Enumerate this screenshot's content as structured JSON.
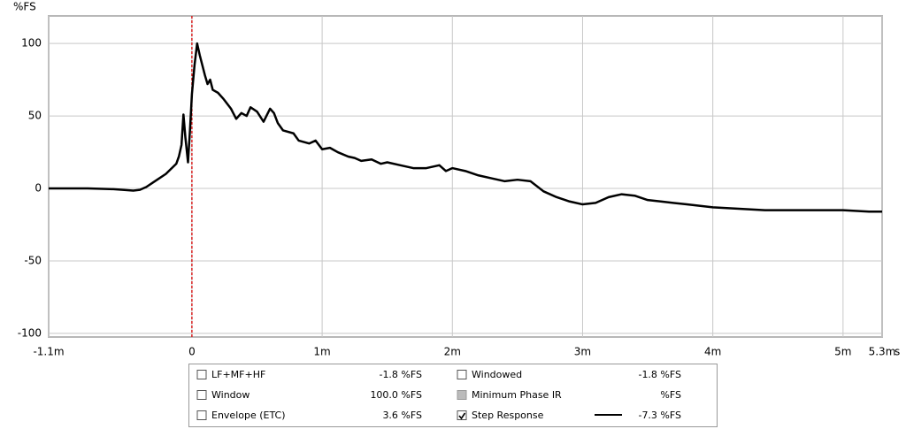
{
  "chart_data": {
    "type": "line",
    "ylabel": "%FS",
    "xlabel": "s",
    "xlim": [
      -0.0011,
      0.0053
    ],
    "ylim": [
      -102.5,
      119
    ],
    "xticks": [
      {
        "value": -0.0011,
        "label": "-1.1m"
      },
      0,
      {
        "value": 0.001,
        "label": "1m"
      },
      {
        "value": 0.002,
        "label": "2m"
      },
      {
        "value": 0.003,
        "label": "3m"
      },
      {
        "value": 0.004,
        "label": "4m"
      },
      {
        "value": 0.005,
        "label": "5m"
      },
      {
        "value": 0.0053,
        "label": "5.3m"
      }
    ],
    "yticks": [
      100,
      50,
      0,
      -50,
      -100
    ],
    "grid": true,
    "cursor_x": 0,
    "cursor_color": "#d40000",
    "x": [
      -0.0011,
      -0.0008,
      -0.0006,
      -0.00045,
      -0.0004,
      -0.00035,
      -0.0003,
      -0.0002,
      -0.00012,
      -0.0001,
      -8e-05,
      -6.5e-05,
      -5e-05,
      -3e-05,
      -1.5e-05,
      0,
      2e-05,
      4e-05,
      6e-05,
      8e-05,
      0.0001,
      0.00012,
      0.00014,
      0.00016,
      0.0002,
      0.00024,
      0.0003,
      0.00034,
      0.00038,
      0.00042,
      0.00045,
      0.0005,
      0.00055,
      0.0006,
      0.00063,
      0.00066,
      0.0007,
      0.00078,
      0.00082,
      0.0009,
      0.00095,
      0.001,
      0.00106,
      0.00112,
      0.0012,
      0.00125,
      0.0013,
      0.00138,
      0.00145,
      0.0015,
      0.0016,
      0.0017,
      0.0018,
      0.0019,
      0.00195,
      0.002,
      0.0021,
      0.0022,
      0.0023,
      0.0024,
      0.0025,
      0.0026,
      0.0027,
      0.0028,
      0.0029,
      0.003,
      0.0031,
      0.0032,
      0.0033,
      0.0034,
      0.0035,
      0.0036,
      0.0038,
      0.004,
      0.0042,
      0.0044,
      0.0046,
      0.0048,
      0.005,
      0.0052,
      0.0053
    ],
    "series": [
      {
        "name": "Step Response",
        "color": "#000000",
        "values": [
          0,
          0,
          -0.5,
          -1.5,
          -1,
          1,
          4,
          10,
          17,
          22,
          30,
          51,
          35,
          18,
          40,
          65,
          85,
          100,
          92,
          85,
          78,
          72,
          75,
          68,
          66,
          62,
          55,
          48,
          52,
          50,
          56,
          53,
          46,
          55,
          52,
          45,
          40,
          38,
          33,
          31,
          33,
          27,
          28,
          25,
          22,
          21,
          19,
          20,
          17,
          18,
          16,
          14,
          14,
          16,
          12,
          14,
          12,
          9,
          7,
          5,
          6,
          5,
          -2,
          -6,
          -9,
          -11,
          -10,
          -6,
          -4,
          -5,
          -8,
          -9,
          -11,
          -13,
          -14,
          -15,
          -15,
          -15,
          -15,
          -16,
          -16
        ]
      }
    ],
    "readouts": [
      {
        "label": "LF+MF+HF",
        "value": "-1.8 %FS",
        "checked": false,
        "enabled": true,
        "color": "#000000"
      },
      {
        "label": "Window",
        "value": "100.0 %FS",
        "checked": false,
        "enabled": true,
        "color": "#1c1cc8"
      },
      {
        "label": "Envelope (ETC)",
        "value": "3.6 %FS",
        "checked": false,
        "enabled": true,
        "color": "#000000"
      },
      {
        "label": "Windowed",
        "value": "-1.8 %FS",
        "checked": false,
        "enabled": true,
        "color": "#000000"
      },
      {
        "label": "Minimum Phase IR",
        "value": "%FS",
        "checked": false,
        "enabled": false,
        "color": "#9a9a9a"
      },
      {
        "label": "Step Response",
        "value": "-7.3 %FS",
        "checked": true,
        "enabled": true,
        "color": "#000000"
      }
    ]
  }
}
